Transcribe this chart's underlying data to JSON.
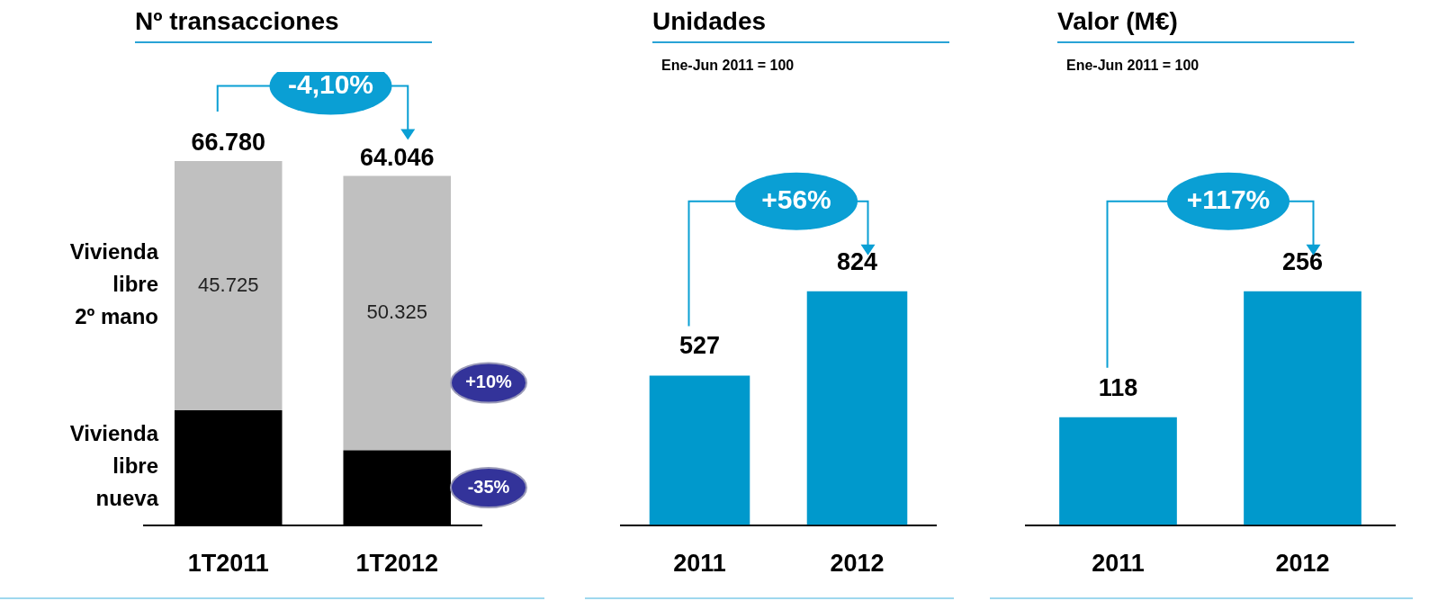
{
  "chart_data": [
    {
      "type": "bar",
      "title": "Nº transacciones",
      "categories": [
        "1T2011",
        "1T2012"
      ],
      "stacked": true,
      "series": [
        {
          "name": "Vivienda libre nueva",
          "color": "#000000",
          "values": [
            21055,
            13721
          ],
          "value_labels": [
            null,
            null
          ]
        },
        {
          "name": "Vivienda libre 2º mano",
          "color": "#c0c0c0",
          "values": [
            45725,
            50325
          ],
          "value_labels": [
            "45.725",
            "50.325"
          ]
        }
      ],
      "totals": [
        "66.780",
        "64.046"
      ],
      "annotations": [
        "-4,10%",
        "+10%",
        "-35%"
      ],
      "legend": false,
      "grid": false
    },
    {
      "type": "bar",
      "title": "Unidades",
      "subtitle": "Ene-Jun 2011 = 100",
      "categories": [
        "2011",
        "2012"
      ],
      "values": [
        527,
        824
      ],
      "color": "#0099cc",
      "data_labels": true,
      "annotations": [
        "+56%"
      ],
      "legend": false,
      "grid": false
    },
    {
      "type": "bar",
      "title": "Valor (M€)",
      "subtitle": "Ene-Jun 2011 = 100",
      "categories": [
        "2011",
        "2012"
      ],
      "values": [
        118,
        256
      ],
      "color": "#0099cc",
      "data_labels": true,
      "annotations": [
        "+117%"
      ],
      "legend": false,
      "grid": false
    }
  ]
}
